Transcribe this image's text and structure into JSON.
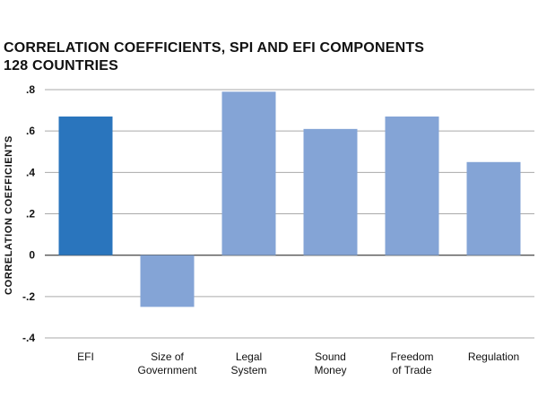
{
  "chart_data": {
    "type": "bar",
    "title": "CORRELATION COEFFICIENTS, SPI AND EFI COMPONENTS",
    "subtitle": "128 COUNTRIES",
    "ylabel": "CORRELATION COEFFICIENTS",
    "xlabel": "",
    "categories": [
      [
        "EFI"
      ],
      [
        "Size of",
        "Government"
      ],
      [
        "Legal",
        "System"
      ],
      [
        "Sound",
        "Money"
      ],
      [
        "Freedom",
        "of Trade"
      ],
      [
        "Regulation"
      ]
    ],
    "values": [
      0.67,
      -0.25,
      0.79,
      0.61,
      0.67,
      0.45
    ],
    "ylim": [
      -0.4,
      0.8
    ],
    "yticks": [
      0.8,
      0.6,
      0.4,
      0.2,
      0,
      -0.2,
      -0.4
    ],
    "ytick_labels": [
      ".8",
      ".6",
      ".4",
      ".2",
      "0",
      "-.2",
      "-.4"
    ],
    "grid": true,
    "colors": {
      "highlight": "#2a75bd",
      "bar": "#84a4d6",
      "grid": "#aaaaaa",
      "zero_line": "#555555"
    }
  }
}
